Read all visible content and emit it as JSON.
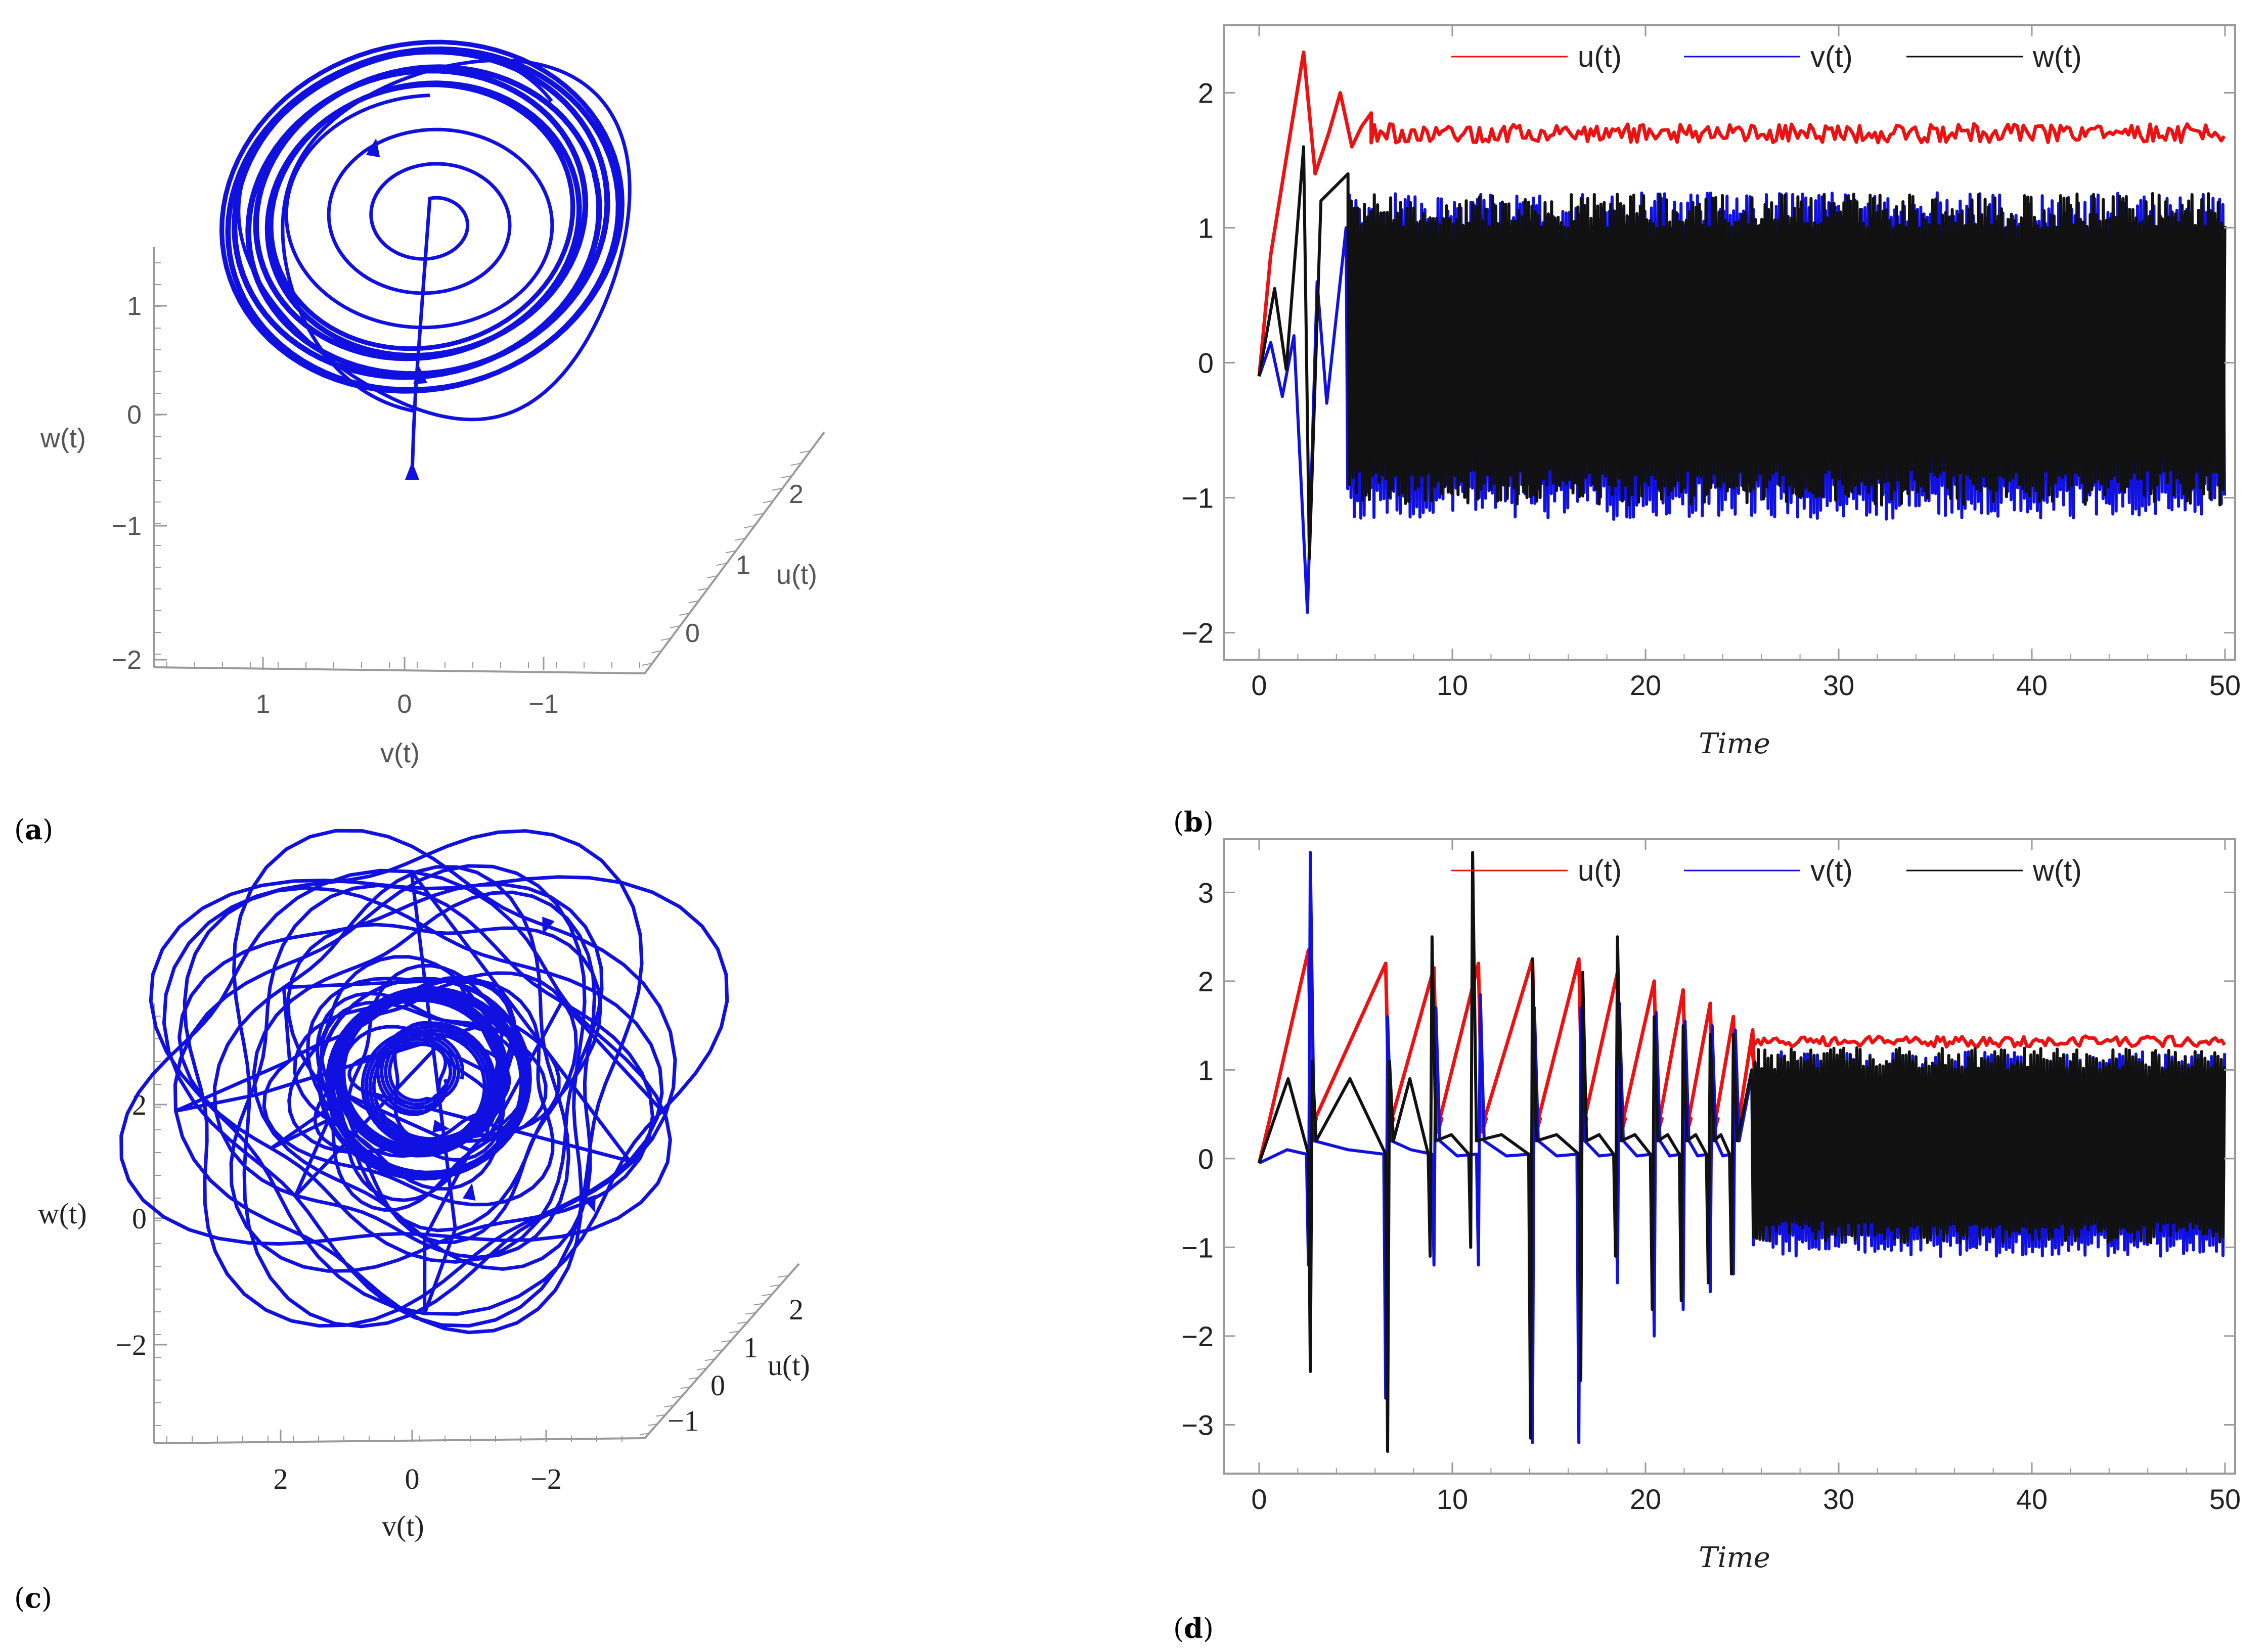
{
  "panels": [
    {
      "id": "a",
      "label": "a",
      "chart_data": {
        "type": "line",
        "projection": "3d",
        "series_color": "#1010e0",
        "vertical_axis": {
          "label": "w(t)",
          "ticks": [
            "1",
            "0",
            "−1",
            "−2"
          ]
        },
        "front_axis": {
          "label": "v(t)",
          "ticks": [
            "1",
            "0",
            "−1"
          ]
        },
        "depth_axis": {
          "label": "u(t)",
          "ticks": [
            "0",
            "1",
            "2"
          ]
        },
        "attractor": {
          "turns": 28,
          "ring_mean": 0.75,
          "ring_spread": 0.16,
          "transient_loops": 3,
          "arrows": 3
        }
      }
    },
    {
      "id": "b",
      "label": "b",
      "chart_data": {
        "type": "line",
        "xlabel": "Time",
        "ylabel": "",
        "xlim": [
          0,
          50
        ],
        "ylim": [
          -2.2,
          2.5
        ],
        "xticks": [
          "0",
          "10",
          "20",
          "30",
          "40",
          "50"
        ],
        "yticks": [
          "−2",
          "−1",
          "0",
          "1",
          "2"
        ],
        "legend_position": "top-right",
        "grid": false,
        "series": [
          {
            "name": "u(t)",
            "color": "#ee1111",
            "transient": [
              [
                0,
                -0.1
              ],
              [
                0.6,
                0.8
              ],
              [
                1.5,
                1.6
              ],
              [
                2.3,
                2.3
              ],
              [
                2.9,
                1.4
              ],
              [
                3.6,
                1.7
              ],
              [
                4.2,
                2.0
              ],
              [
                4.8,
                1.6
              ],
              [
                5.3,
                1.75
              ],
              [
                5.8,
                1.85
              ]
            ],
            "steady_mean": 1.7,
            "steady_amplitude": 0.07
          },
          {
            "name": "v(t)",
            "color": "#1010e0",
            "transient": [
              [
                0,
                -0.1
              ],
              [
                0.6,
                0.15
              ],
              [
                1.2,
                -0.25
              ],
              [
                1.8,
                0.2
              ],
              [
                2.5,
                -1.85
              ],
              [
                3.0,
                0.6
              ],
              [
                3.5,
                -0.3
              ],
              [
                4.5,
                1.0
              ]
            ],
            "steady_mean": 0.05,
            "steady_amplitude": 1.1
          },
          {
            "name": "w(t)",
            "color": "#111111",
            "transient": [
              [
                0,
                -0.1
              ],
              [
                0.8,
                0.55
              ],
              [
                1.4,
                -0.05
              ],
              [
                2.3,
                1.6
              ],
              [
                2.6,
                -1.45
              ],
              [
                3.2,
                1.2
              ],
              [
                4.6,
                1.4
              ]
            ],
            "steady_mean": 0.1,
            "steady_amplitude": 1.05
          }
        ]
      }
    },
    {
      "id": "c",
      "label": "c",
      "chart_data": {
        "type": "line",
        "projection": "3d",
        "series_color": "#1010e0",
        "vertical_axis": {
          "label": "w(t)",
          "ticks": [
            "2",
            "0",
            "−2"
          ]
        },
        "front_axis": {
          "label": "v(t)",
          "ticks": [
            "2",
            "0",
            "−2"
          ]
        },
        "depth_axis": {
          "label": "u(t)",
          "ticks": [
            "−1",
            "0",
            "1",
            "2"
          ]
        },
        "attractor": {
          "loops": 22,
          "arrows": 4
        }
      }
    },
    {
      "id": "d",
      "label": "d",
      "chart_data": {
        "type": "line",
        "xlabel": "Time",
        "ylabel": "",
        "xlim": [
          0,
          50
        ],
        "ylim": [
          -3.55,
          3.6
        ],
        "xticks": [
          "0",
          "10",
          "20",
          "30",
          "40",
          "50"
        ],
        "yticks": [
          "−3",
          "−2",
          "−1",
          "0",
          "1",
          "2",
          "3"
        ],
        "legend_position": "top-right",
        "grid": false,
        "series": [
          {
            "name": "u(t)",
            "color": "#ee1111",
            "spikes_at": [
              2.6,
              6.6,
              9.1,
              11.4,
              14.2,
              16.6,
              18.6,
              20.5,
              22.0,
              23.4,
              24.6,
              25.6
            ],
            "spike_peaks": [
              2.35,
              2.2,
              2.15,
              2.2,
              2.25,
              2.25,
              2.1,
              2.0,
              1.9,
              1.75,
              1.6,
              1.45
            ],
            "steady_from": 25.5,
            "steady_mean": 1.32,
            "steady_amplitude": 0.06
          },
          {
            "name": "v(t)",
            "color": "#1010e0",
            "spikes_at": [
              2.6,
              6.6,
              9.1,
              11.4,
              14.2,
              16.6,
              18.6,
              20.5,
              22.0,
              23.4,
              24.6
            ],
            "spike_peaks": [
              3.45,
              1.6,
              1.7,
              1.85,
              1.7,
              1.7,
              1.75,
              1.65,
              1.55,
              1.5,
              1.45
            ],
            "spike_lows": [
              -1.2,
              -2.7,
              -1.2,
              -1.2,
              -3.2,
              -3.2,
              -1.4,
              -2.0,
              -1.7,
              -1.5,
              -1.3
            ],
            "steady_from": 25.5,
            "steady_mean": 0.05,
            "steady_amplitude": 1.05
          },
          {
            "name": "w(t)",
            "color": "#111111",
            "spikes_at": [
              2.7,
              6.7,
              8.9,
              11.0,
              14.1,
              16.7,
              18.5,
              20.4,
              21.9,
              23.3,
              24.5
            ],
            "spike_peaks": [
              1.1,
              1.1,
              2.5,
              3.45,
              2.25,
              2.1,
              2.5,
              1.6,
              1.5,
              1.4,
              1.4
            ],
            "spike_lows": [
              -2.4,
              -3.3,
              -1.1,
              -1.0,
              -3.15,
              -2.5,
              -1.1,
              -1.7,
              -1.6,
              -1.4,
              -1.3
            ],
            "steady_from": 25.5,
            "steady_mean": 0.15,
            "steady_amplitude": 1.0
          }
        ]
      }
    }
  ]
}
